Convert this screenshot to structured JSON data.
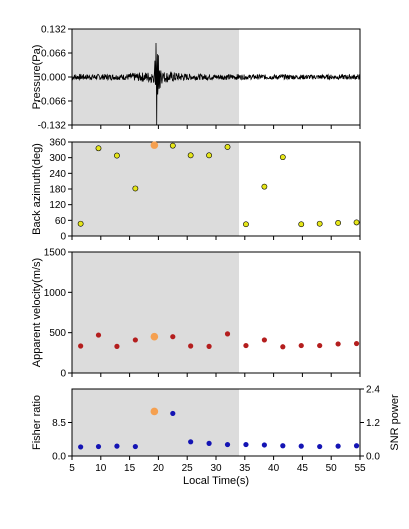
{
  "chart_data": [
    {
      "type": "line",
      "panel": "pressure",
      "ylabel": "Pressure(Pa)",
      "ylim": [
        -0.132,
        0.132
      ],
      "yticks": [
        0.132,
        0.066,
        0.0,
        -0.066,
        -0.132
      ],
      "ytick_labels": [
        "0.132",
        "0.066",
        "0.000",
        "-0.066",
        "-0.132"
      ],
      "xlim": [
        5,
        55
      ],
      "shaded_x": [
        5,
        34
      ],
      "series": [
        {
          "x": [
            19.0,
            19.2,
            19.4,
            19.5,
            19.6,
            19.7,
            19.8,
            19.9,
            20.0,
            20.1,
            20.2,
            20.3,
            20.4,
            20.6,
            20.8,
            21.0
          ],
          "values": [
            0.008,
            -0.02,
            0.045,
            -0.06,
            0.132,
            -0.132,
            0.1,
            -0.085,
            0.06,
            -0.05,
            0.035,
            -0.03,
            0.022,
            -0.018,
            0.012,
            -0.008
          ]
        }
      ],
      "noise_amplitude": 0.008
    },
    {
      "type": "scatter",
      "panel": "back-azimuth",
      "ylabel": "Back azimuth(deg)",
      "ylim": [
        0,
        360
      ],
      "yticks": [
        0,
        60,
        120,
        180,
        240,
        300,
        360
      ],
      "xlim": [
        5,
        55
      ],
      "shaded_x": [
        5,
        34
      ],
      "series": [
        {
          "color": "#e6e619",
          "x": [
            6.5,
            9.6,
            12.8,
            16.0,
            22.5,
            25.6,
            28.8,
            32.0,
            35.2,
            38.4,
            41.6,
            44.8,
            48.0,
            51.2,
            54.4
          ],
          "values": [
            47,
            336,
            308,
            182,
            346,
            309,
            309,
            341,
            45,
            189,
            302,
            45,
            47,
            50,
            52
          ]
        }
      ],
      "highlight": {
        "x": 19.3,
        "value": 348,
        "color": "#f5a050"
      }
    },
    {
      "type": "scatter",
      "panel": "apparent-velocity",
      "ylabel": "Apparent velocity(m/s)",
      "ylim": [
        0,
        1500
      ],
      "yticks": [
        0,
        500,
        1000,
        1500
      ],
      "xlim": [
        5,
        55
      ],
      "shaded_x": [
        5,
        34
      ],
      "series": [
        {
          "color": "#b41e1e",
          "x": [
            6.5,
            9.6,
            12.8,
            16.0,
            22.5,
            25.6,
            28.8,
            32.0,
            35.2,
            38.4,
            41.6,
            44.8,
            48.0,
            51.2,
            54.4
          ],
          "values": [
            335,
            470,
            330,
            410,
            450,
            335,
            330,
            485,
            340,
            410,
            325,
            340,
            340,
            360,
            365
          ]
        }
      ],
      "highlight": {
        "x": 19.3,
        "value": 450,
        "color": "#f5a050"
      }
    },
    {
      "type": "scatter",
      "panel": "fisher-snr",
      "ylabel": "Fisher ratio",
      "ylabel_right": "SNR power",
      "ylim": [
        0,
        17
      ],
      "yticks": [
        0,
        8.5
      ],
      "ytick_labels": [
        "0.0",
        "8.5"
      ],
      "ylim_right": [
        0,
        2.4
      ],
      "yticks_right": [
        0,
        1.2,
        2.4
      ],
      "yticks_right_labels": [
        "0.0",
        "1.2",
        "2.4"
      ],
      "xlim": [
        5,
        55
      ],
      "xticks": [
        5,
        10,
        15,
        20,
        25,
        30,
        35,
        40,
        45,
        50,
        55
      ],
      "xlabel": "Local Time(s)",
      "shaded_x": [
        5,
        34
      ],
      "series": [
        {
          "color": "#1414b4",
          "x": [
            6.5,
            9.6,
            12.8,
            16.0,
            22.5,
            25.6,
            28.8,
            32.0,
            35.2,
            38.4,
            41.6,
            44.8,
            48.0,
            51.2,
            54.4
          ],
          "values": [
            2.3,
            2.4,
            2.5,
            2.4,
            10.8,
            3.6,
            3.2,
            2.9,
            2.9,
            2.8,
            2.6,
            2.5,
            2.4,
            2.5,
            2.6
          ]
        }
      ],
      "highlight": {
        "x": 19.3,
        "value": 11.3,
        "color": "#f5a050"
      }
    }
  ]
}
